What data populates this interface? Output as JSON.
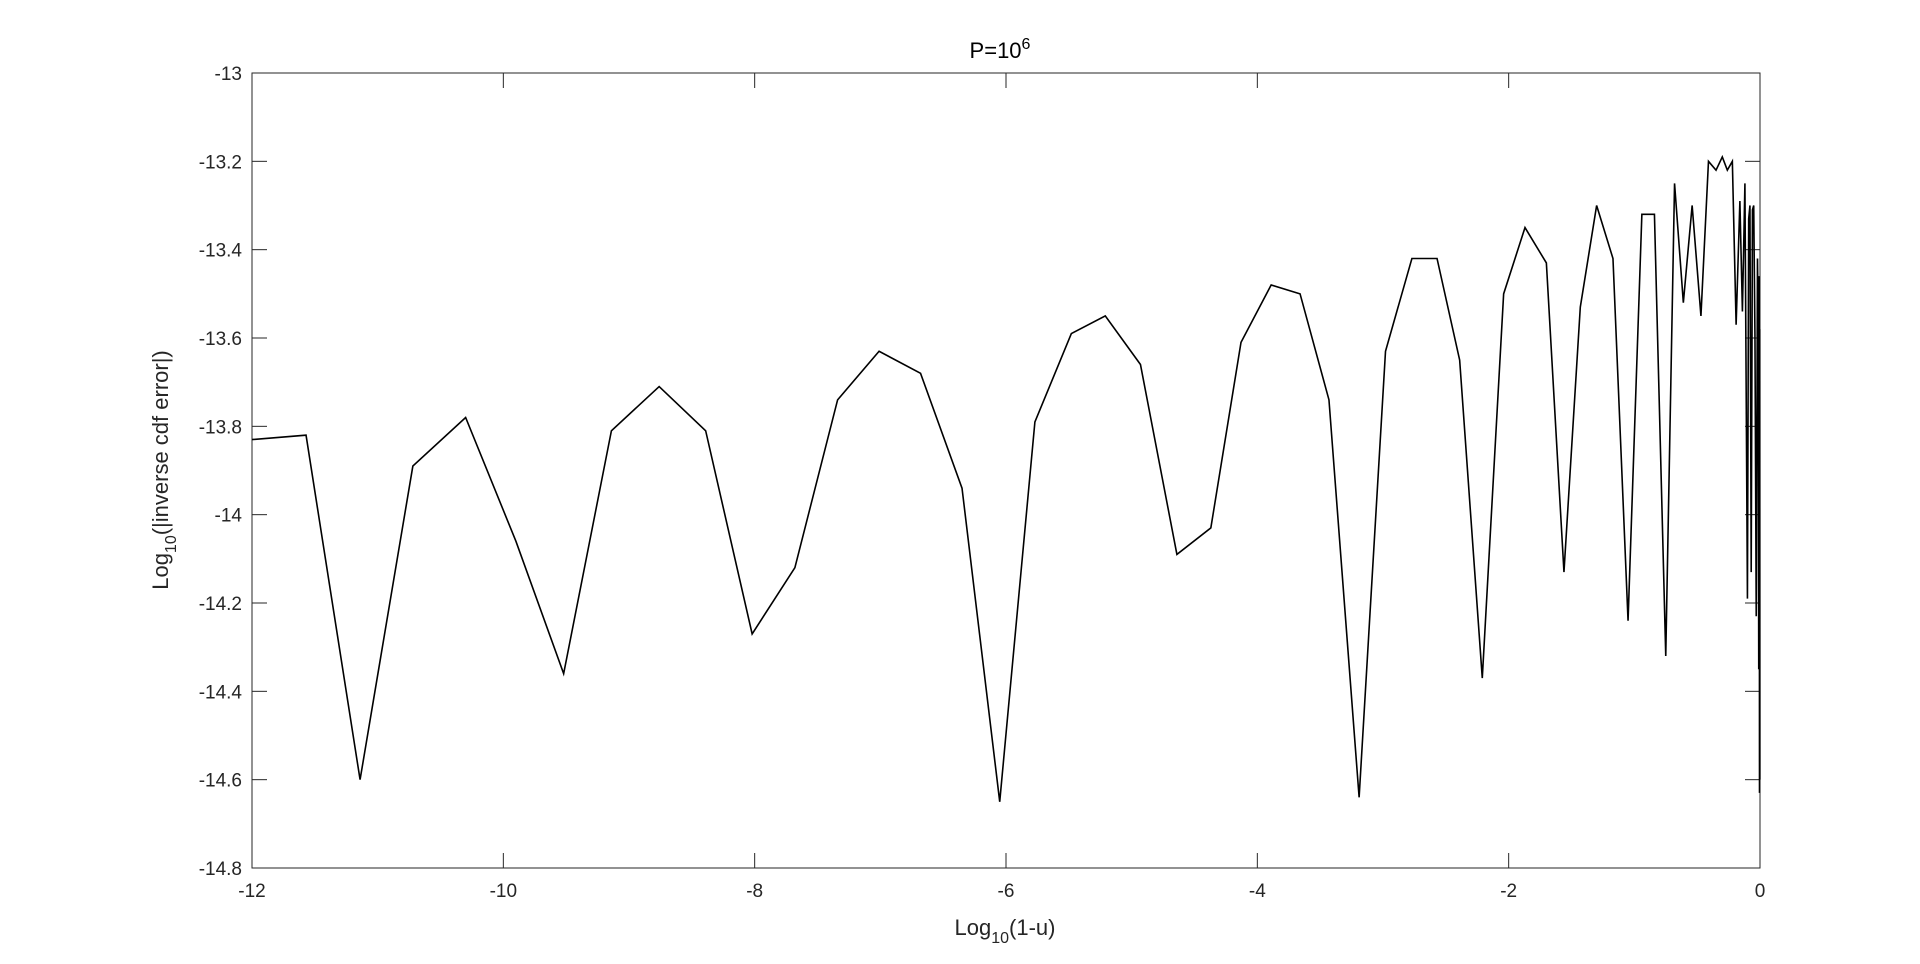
{
  "chart_data": {
    "type": "line",
    "title": {
      "base": "P=10",
      "sup": "6"
    },
    "xlabel": {
      "pre": "Log",
      "sub": "10",
      "post": "(1-u)"
    },
    "ylabel": {
      "pre": "Log",
      "sub": "10",
      "post": "(|inverse cdf error|)"
    },
    "xlim": [
      -12,
      0
    ],
    "ylim": [
      -14.8,
      -13
    ],
    "xticks": [
      -12,
      -10,
      -8,
      -6,
      -4,
      -2,
      0
    ],
    "xtick_labels": [
      "-12",
      "-10",
      "-8",
      "-6",
      "-4",
      "-2",
      "0"
    ],
    "yticks": [
      -14.8,
      -14.6,
      -14.4,
      -14.2,
      -14,
      -13.8,
      -13.6,
      -13.4,
      -13.2,
      -13
    ],
    "ytick_labels": [
      "-14.8",
      "-14.6",
      "-14.4",
      "-14.2",
      "-14",
      "-13.8",
      "-13.6",
      "-13.4",
      "-13.2",
      "-13"
    ],
    "grid": false,
    "line_color": "#000000",
    "series": [
      {
        "x": [
          -12.0,
          -11.57,
          -11.14,
          -10.72,
          -10.3,
          -9.9,
          -9.52,
          -9.14,
          -8.76,
          -8.39,
          -8.02,
          -7.68,
          -7.34,
          -7.01,
          -6.68,
          -6.35,
          -6.05,
          -5.77,
          -5.48,
          -5.21,
          -4.93,
          -4.64,
          -4.37,
          -4.13,
          -3.89,
          -3.66,
          -3.43,
          -3.19,
          -2.98,
          -2.77,
          -2.57,
          -2.39,
          -2.21,
          -2.04,
          -1.87,
          -1.7,
          -1.56,
          -1.43,
          -1.3,
          -1.17,
          -1.05,
          -0.94,
          -0.84,
          -0.75,
          -0.68,
          -0.61,
          -0.54,
          -0.47,
          -0.41,
          -0.35,
          -0.3,
          -0.26,
          -0.22,
          -0.19,
          -0.16,
          -0.14,
          -0.12,
          -0.1,
          -0.09,
          -0.08,
          -0.07,
          -0.06,
          -0.05,
          -0.04,
          -0.03,
          -0.02,
          -0.015,
          -0.01,
          -0.006,
          -0.004,
          -0.002,
          -0.001
        ],
        "y": [
          -13.83,
          -13.82,
          -14.6,
          -13.89,
          -13.78,
          -14.06,
          -14.36,
          -13.81,
          -13.71,
          -13.81,
          -14.27,
          -14.12,
          -13.74,
          -13.63,
          -13.68,
          -13.94,
          -14.65,
          -13.79,
          -13.59,
          -13.55,
          -13.66,
          -14.09,
          -14.03,
          -13.61,
          -13.48,
          -13.5,
          -13.74,
          -14.64,
          -13.63,
          -13.42,
          -13.42,
          -13.65,
          -14.37,
          -13.5,
          -13.35,
          -13.43,
          -14.13,
          -13.53,
          -13.3,
          -13.42,
          -14.24,
          -13.32,
          -13.32,
          -14.32,
          -13.25,
          -13.52,
          -13.3,
          -13.55,
          -13.2,
          -13.22,
          -13.19,
          -13.22,
          -13.2,
          -13.57,
          -13.29,
          -13.54,
          -13.25,
          -14.19,
          -13.33,
          -13.3,
          -14.13,
          -13.31,
          -13.3,
          -13.6,
          -14.23,
          -13.42,
          -13.55,
          -14.35,
          -13.46,
          -14.63,
          -13.58,
          -14.6
        ]
      }
    ]
  }
}
